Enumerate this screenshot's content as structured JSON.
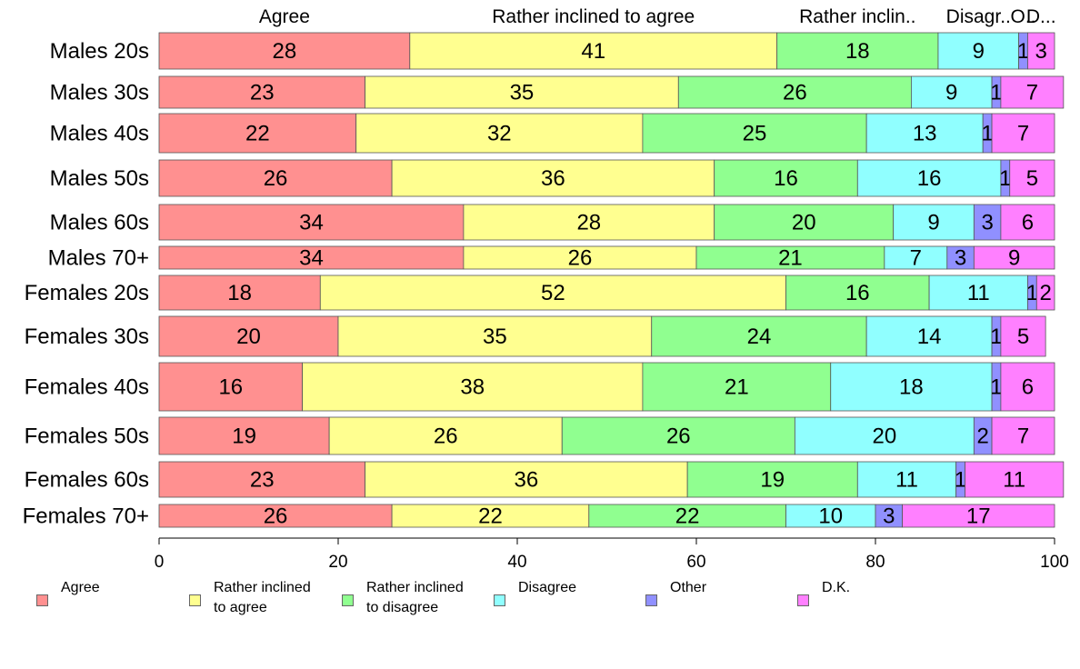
{
  "chart_data": {
    "type": "bar",
    "orientation": "horizontal",
    "stacked": true,
    "categories": [
      "Males 20s",
      "Males 30s",
      "Males 40s",
      "Males 50s",
      "Males 60s",
      "Males 70+",
      "Females 20s",
      "Females 30s",
      "Females 40s",
      "Females 50s",
      "Females 60s",
      "Females 70+"
    ],
    "series": [
      {
        "name": "Agree",
        "top_label": "Agree",
        "color": "#ff9090",
        "values": [
          28,
          23,
          22,
          26,
          34,
          34,
          18,
          20,
          16,
          19,
          23,
          26
        ]
      },
      {
        "name": "Rather inclined to agree",
        "top_label": "Rather inclined to agree",
        "color": "#ffff90",
        "values": [
          41,
          35,
          32,
          36,
          28,
          26,
          52,
          35,
          38,
          26,
          36,
          22
        ]
      },
      {
        "name": "Rather inclined to disagree",
        "top_label": "Rather inclin..",
        "color": "#90ff90",
        "values": [
          18,
          26,
          25,
          16,
          20,
          21,
          16,
          24,
          21,
          26,
          19,
          22
        ]
      },
      {
        "name": "Disagree",
        "top_label": "Disagr..",
        "color": "#90ffff",
        "values": [
          9,
          9,
          13,
          16,
          9,
          7,
          11,
          14,
          18,
          20,
          11,
          10
        ]
      },
      {
        "name": "Other",
        "top_label": "O..",
        "color": "#9090ff",
        "values": [
          1,
          1,
          1,
          1,
          3,
          3,
          1,
          1,
          1,
          2,
          1,
          3
        ]
      },
      {
        "name": "D.K.",
        "top_label": "D...",
        "color": "#ff80ff",
        "values": [
          3,
          7,
          7,
          5,
          6,
          9,
          2,
          5,
          6,
          7,
          11,
          17
        ]
      }
    ],
    "xlim": [
      0,
      100
    ],
    "xticks": [
      "0",
      "20",
      "40",
      "60",
      "80",
      "100"
    ],
    "grid": false,
    "legend_position": "bottom"
  },
  "legend": {
    "items": [
      {
        "label": "Agree",
        "color": "#ff9090"
      },
      {
        "label": "Rather inclined\nto agree",
        "color": "#ffff90"
      },
      {
        "label": "Rather inclined\nto disagree",
        "color": "#90ff90"
      },
      {
        "label": "Disagree",
        "color": "#90ffff"
      },
      {
        "label": "Other",
        "color": "#9090ff"
      },
      {
        "label": "D.K.",
        "color": "#ff80ff"
      }
    ]
  }
}
